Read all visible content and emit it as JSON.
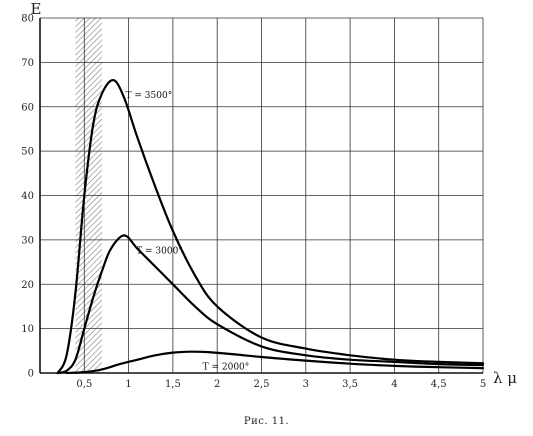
{
  "caption": "Рис. 11.",
  "chart_data": {
    "type": "line",
    "xlabel": "λ μ",
    "ylabel": "E",
    "xlim": [
      0,
      5
    ],
    "ylim": [
      0,
      80
    ],
    "x_ticks": [
      0.5,
      1,
      1.5,
      2,
      2.5,
      3,
      3.5,
      4,
      4.5,
      5
    ],
    "x_tick_labels": [
      "0,5",
      "1",
      "1,5",
      "2",
      "2,5",
      "3",
      "3,5",
      "4",
      "4,5",
      "5"
    ],
    "y_ticks": [
      0,
      10,
      20,
      30,
      40,
      50,
      60,
      70,
      80
    ],
    "y_tick_labels": [
      "0",
      "10",
      "20",
      "30",
      "40",
      "50",
      "60",
      "70",
      "80"
    ],
    "grid": true,
    "shaded_band": {
      "x0": 0.4,
      "x1": 0.7
    },
    "series": [
      {
        "name": "T = 3500°",
        "x": [
          0.2,
          0.3,
          0.4,
          0.5,
          0.6,
          0.7,
          0.83,
          0.95,
          1.1,
          1.3,
          1.5,
          1.75,
          2.0,
          2.5,
          3.0,
          3.5,
          4.0,
          4.5,
          5.0
        ],
        "y": [
          0,
          4,
          18,
          40,
          56,
          63,
          66,
          62,
          53,
          42,
          32,
          22,
          15,
          8,
          5.5,
          4,
          3,
          2.5,
          2.2
        ]
      },
      {
        "name": "T = 3000°",
        "x": [
          0.2,
          0.3,
          0.4,
          0.5,
          0.6,
          0.7,
          0.8,
          0.95,
          1.1,
          1.3,
          1.5,
          1.75,
          2.0,
          2.5,
          3.0,
          3.5,
          4.0,
          4.5,
          5.0
        ],
        "y": [
          0,
          0.5,
          3,
          10,
          17,
          23,
          28,
          31,
          28,
          24,
          20,
          15,
          11,
          6,
          4,
          3,
          2.5,
          2,
          1.8
        ]
      },
      {
        "name": "T = 2000°",
        "x": [
          0.3,
          0.5,
          0.7,
          0.9,
          1.1,
          1.3,
          1.5,
          1.7,
          1.9,
          2.2,
          2.5,
          3.0,
          3.5,
          4.0,
          4.5,
          5.0
        ],
        "y": [
          0,
          0.2,
          0.8,
          2,
          3,
          4,
          4.6,
          4.8,
          4.7,
          4.2,
          3.6,
          2.8,
          2.1,
          1.6,
          1.3,
          1.1
        ]
      }
    ]
  }
}
